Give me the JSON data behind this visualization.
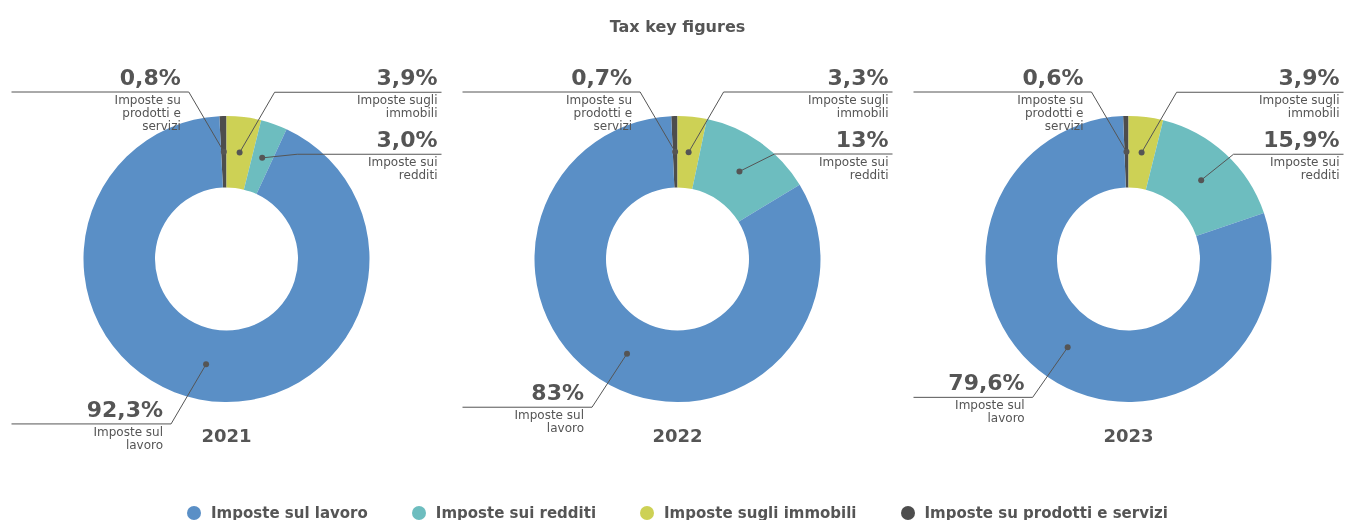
{
  "chart_data": [
    {
      "type": "donut",
      "title": "2021",
      "annotations": [
        "Tax key figures"
      ],
      "legend": "bottom",
      "categories": [
        "Imposte sul lavoro",
        "Imposte sui redditi",
        "Imposte sugli immobili",
        "Imposte su prodotti e servizi"
      ],
      "values": [
        92.3,
        3.0,
        3.9,
        0.8
      ],
      "value_labels": [
        "92,3%",
        "3,0%",
        "3,9%",
        "0,8%"
      ],
      "colors": [
        "#5a8fc6",
        "#6dbdbf",
        "#cdd155",
        "#4d4d4d"
      ]
    },
    {
      "type": "donut",
      "title": "2022",
      "categories": [
        "Imposte sul lavoro",
        "Imposte sui redditi",
        "Imposte sugli immobili",
        "Imposte su prodotti e servizi"
      ],
      "values": [
        83,
        13,
        3.3,
        0.7
      ],
      "value_labels": [
        "83%",
        "13%",
        "3,3%",
        "0,7%"
      ],
      "colors": [
        "#5a8fc6",
        "#6dbdbf",
        "#cdd155",
        "#4d4d4d"
      ]
    },
    {
      "type": "donut",
      "title": "2023",
      "categories": [
        "Imposte sul lavoro",
        "Imposte sui redditi",
        "Imposte sugli immobili",
        "Imposte su prodotti e servizi"
      ],
      "values": [
        79.6,
        15.9,
        3.9,
        0.6
      ],
      "value_labels": [
        "79,6%",
        "15,9%",
        "3,9%",
        "0,6%"
      ],
      "colors": [
        "#5a8fc6",
        "#6dbdbf",
        "#cdd155",
        "#4d4d4d"
      ]
    }
  ]
}
